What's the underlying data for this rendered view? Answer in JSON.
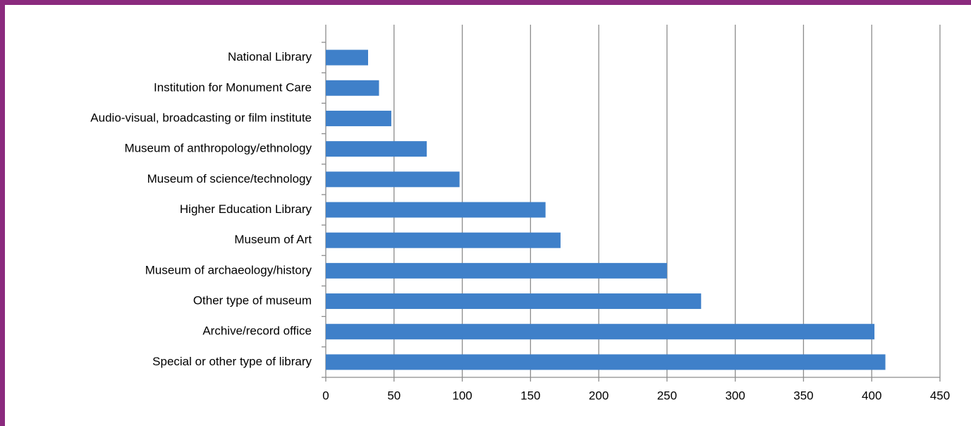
{
  "chart_data": {
    "type": "bar",
    "orientation": "horizontal",
    "categories": [
      "National Library",
      "Institution for Monument Care",
      "Audio-visual, broadcasting or film institute",
      "Museum of anthropology/ethnology",
      "Museum of science/technology",
      "Higher Education Library",
      "Museum of Art",
      "Museum of archaeology/history",
      "Other type of museum",
      "Archive/record office",
      "Special or other type of library"
    ],
    "values": [
      31,
      39,
      48,
      74,
      98,
      161,
      172,
      250,
      275,
      402,
      410
    ],
    "color": "#3f80c9",
    "xlim": [
      0,
      450
    ],
    "xticks": [
      0,
      50,
      100,
      150,
      200,
      250,
      300,
      350,
      400,
      450
    ],
    "grid": true
  }
}
